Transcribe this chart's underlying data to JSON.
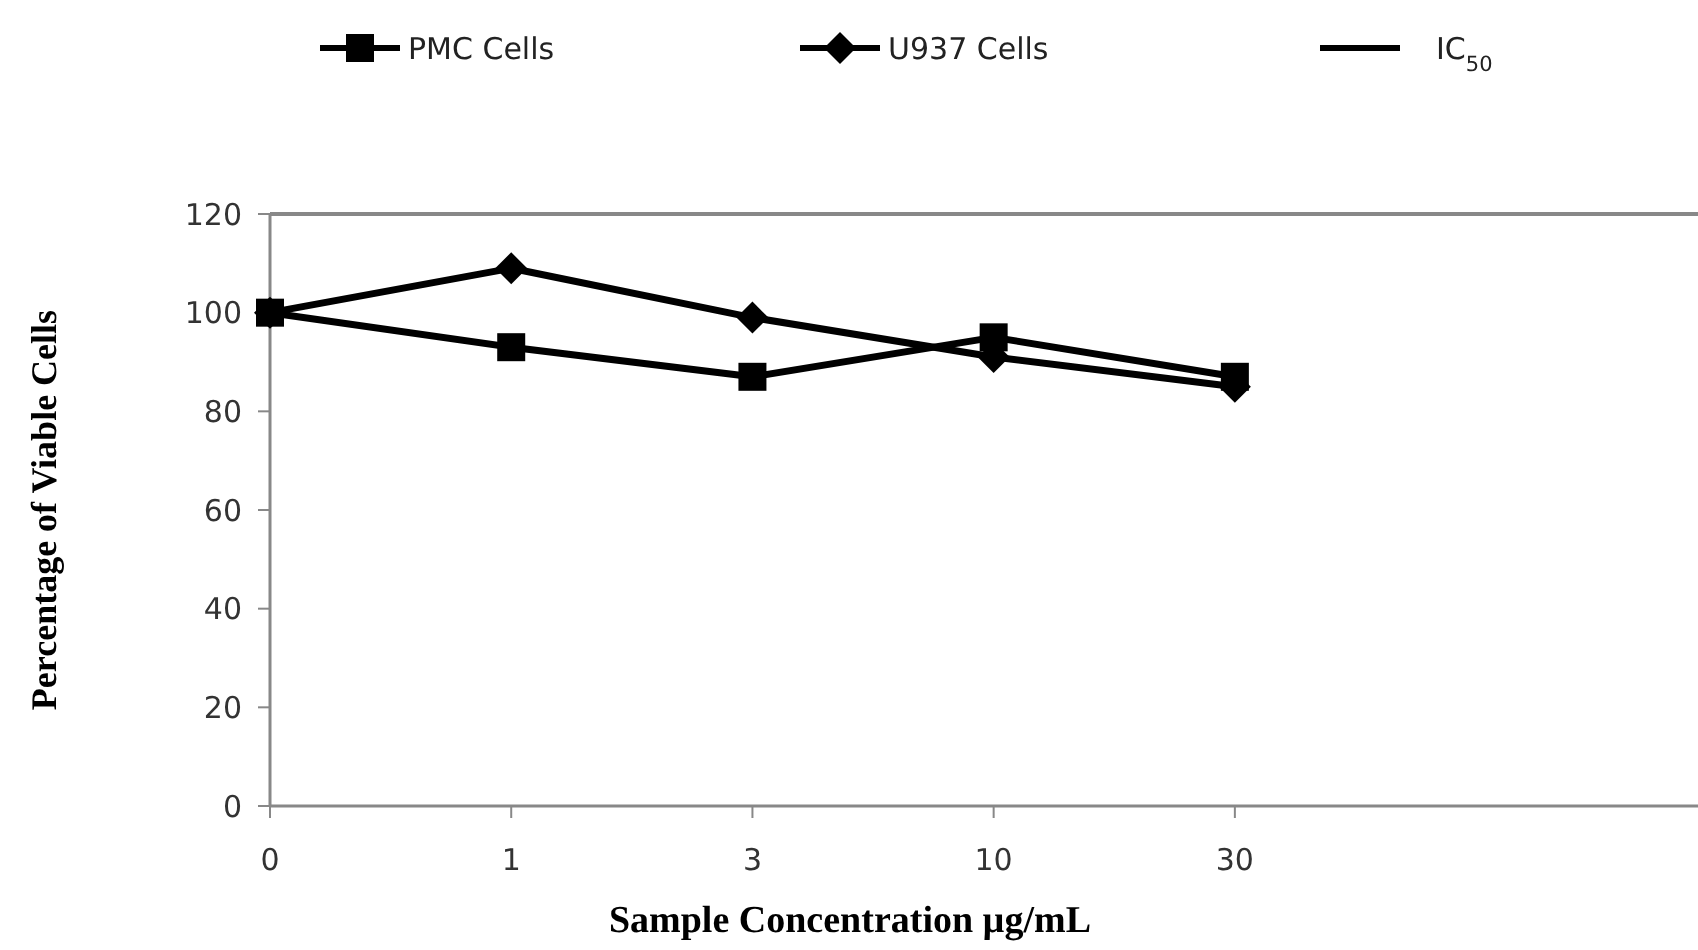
{
  "chart_data": {
    "type": "line",
    "xlabel": "Sample Concentration µg/mL",
    "ylabel": "Percentage of Viable Cells",
    "categories": [
      "0",
      "1",
      "3",
      "10",
      "30"
    ],
    "ylim": [
      0,
      120
    ],
    "yticks": [
      0,
      20,
      40,
      60,
      80,
      100,
      120
    ],
    "legend": "top",
    "grid": false,
    "series": [
      {
        "name": "PMC Cells",
        "color": "#000000",
        "marker": "square",
        "values": [
          100,
          93,
          87,
          95,
          87
        ]
      },
      {
        "name": "U937 Cells",
        "color": "#000000",
        "marker": "diamond",
        "values": [
          100,
          109,
          99,
          91,
          85
        ]
      },
      {
        "name": "IC$_{50}$",
        "color": "#000000",
        "marker": "none",
        "values": [
          null,
          null,
          null,
          null,
          null
        ]
      }
    ]
  }
}
